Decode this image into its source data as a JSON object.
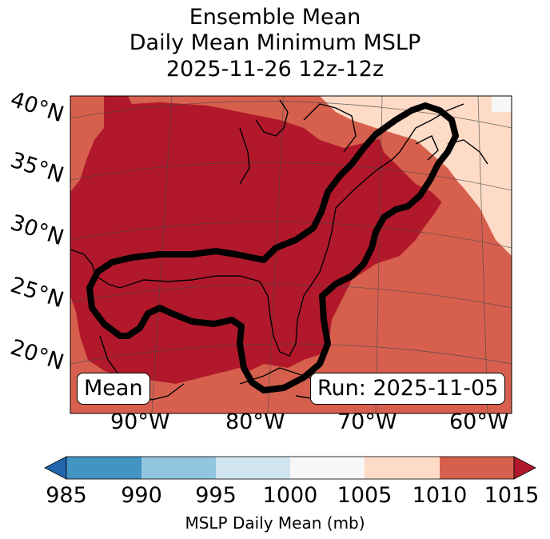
{
  "title": {
    "line1": "Ensemble Mean",
    "line2": "Daily Mean Minimum MSLP",
    "line3": "2025-11-26 12z-12z"
  },
  "map": {
    "lat_labels": [
      "40°N",
      "35°N",
      "30°N",
      "25°N",
      "20°N"
    ],
    "lon_labels": [
      "90°W",
      "80°W",
      "70°W",
      "60°W"
    ],
    "mean_label": "Mean",
    "run_label": "Run: 2025-11-05",
    "contour_color": "#000000",
    "coastline_color": "#000000"
  },
  "colorbar": {
    "label": "MSLP Daily Mean (mb)",
    "ticks": [
      "985",
      "990",
      "995",
      "1000",
      "1005",
      "1010",
      "1015"
    ],
    "colors": [
      "#2166ac",
      "#4393c3",
      "#92c5de",
      "#d1e5f0",
      "#f7f7f7",
      "#fddbc7",
      "#d6604d",
      "#b2182b"
    ],
    "extend": "both"
  }
}
